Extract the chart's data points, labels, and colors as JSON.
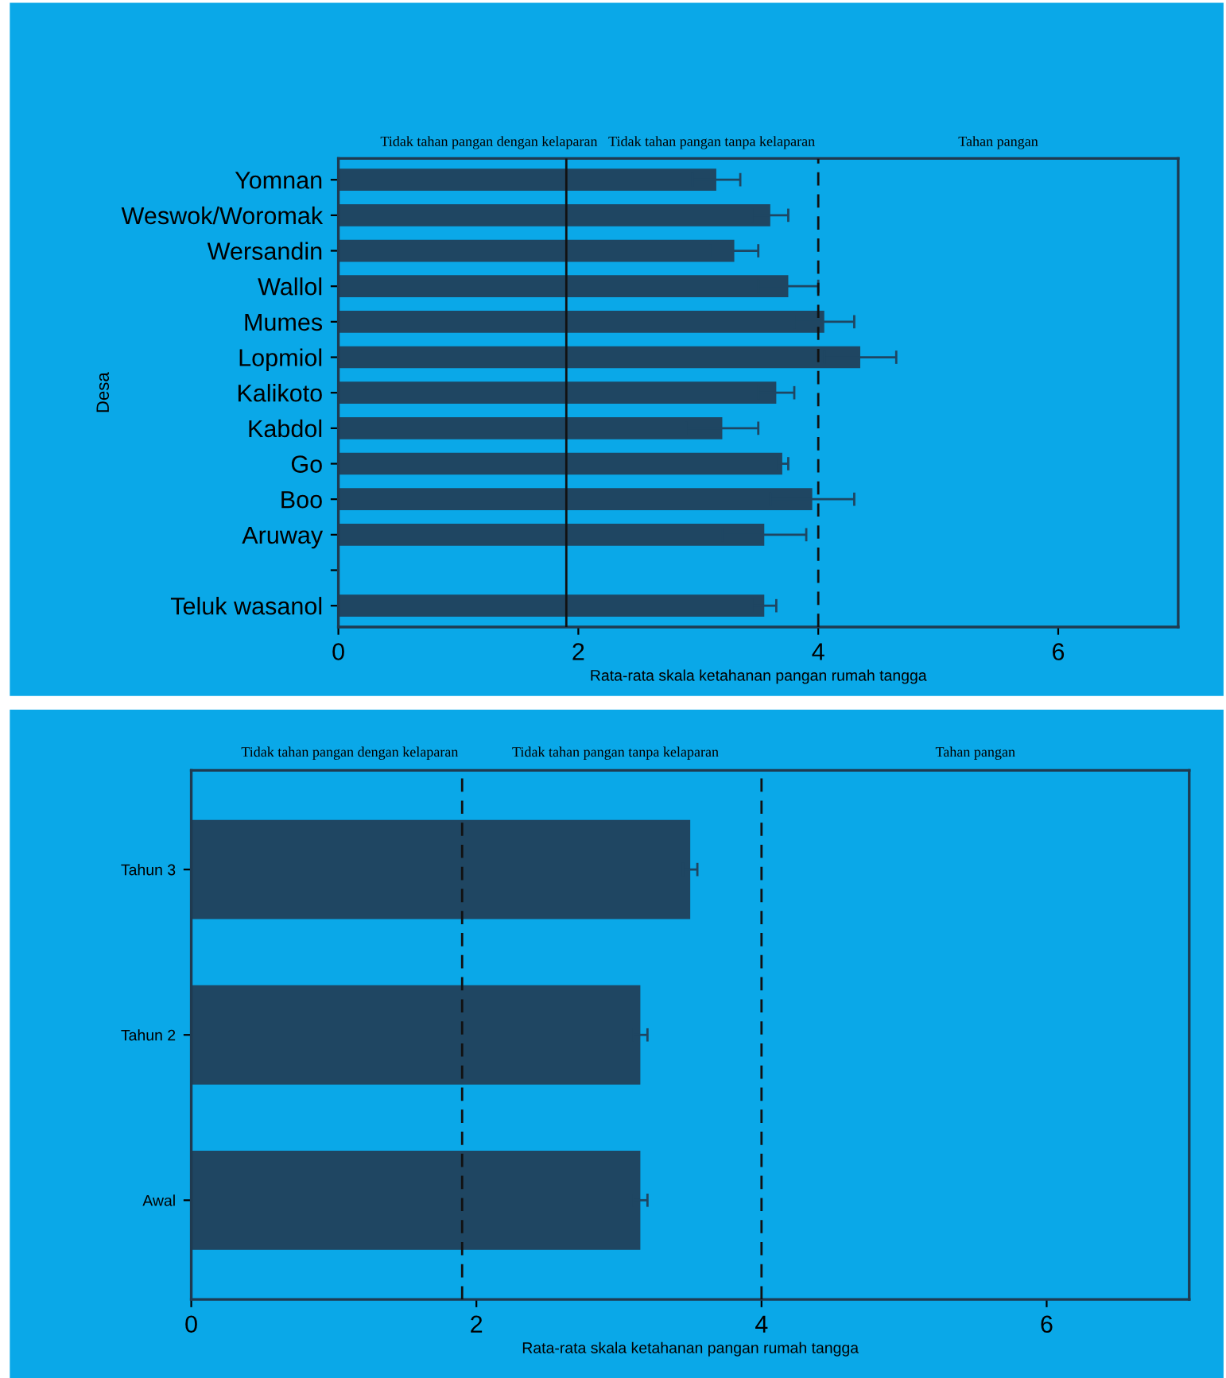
{
  "chart_data": [
    {
      "type": "bar",
      "orientation": "horizontal",
      "ylabel": "Desa",
      "xlabel": "Rata-rata skala ketahanan pangan rumah tangga",
      "categories": [
        "Yomnan",
        "Weswok/Woromak",
        "Wersandin",
        "Wallol",
        "Mumes",
        "Lopmiol",
        "Kalikoto",
        "Kabdol",
        "Go",
        "Boo",
        "Aruway",
        null,
        "Teluk wasanol"
      ],
      "values": [
        3.15,
        3.6,
        3.3,
        3.75,
        4.05,
        4.35,
        3.65,
        3.2,
        3.7,
        3.95,
        3.55,
        null,
        3.55
      ],
      "errors": [
        0.2,
        0.15,
        0.2,
        0.25,
        0.25,
        0.3,
        0.15,
        0.3,
        0.05,
        0.35,
        0.35,
        null,
        0.1
      ],
      "color": "#1f4662",
      "xlim": [
        0,
        7
      ],
      "xticks": [
        0,
        2,
        4,
        6
      ],
      "ref_lines": [
        {
          "axis": "x",
          "value": 1.9,
          "line_style": "solid"
        },
        {
          "axis": "x",
          "value": 4,
          "line_style": "dashed"
        }
      ],
      "annotations": [
        "Tidak tahan pangan dengan kelaparan",
        "Tidak tahan pangan tanpa kelaparan",
        "Tahan pangan"
      ],
      "grid": false,
      "legend": false
    },
    {
      "type": "bar",
      "orientation": "horizontal",
      "xlabel": "Rata-rata skala ketahanan pangan rumah tangga",
      "categories": [
        "Tahun 3",
        "Tahun 2",
        "Awal"
      ],
      "values": [
        3.5,
        3.15,
        3.15
      ],
      "errors": [
        0.05,
        0.05,
        0.05
      ],
      "color": "#1f4662",
      "xlim": [
        0,
        7
      ],
      "xticks": [
        0,
        2,
        4,
        6
      ],
      "ref_lines": [
        {
          "axis": "x",
          "value": 1.9,
          "line_style": "dashed"
        },
        {
          "axis": "x",
          "value": 4,
          "line_style": "dashed"
        }
      ],
      "annotations": [
        "Tidak tahan pangan dengan kelaparan",
        "Tidak tahan pangan tanpa kelaparan",
        "Tahan pangan"
      ],
      "grid": false,
      "legend": false
    }
  ]
}
